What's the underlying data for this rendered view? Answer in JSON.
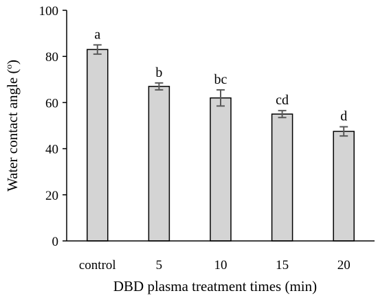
{
  "chart_data": {
    "type": "bar",
    "xlabel": "DBD plasma treatment times (min)",
    "ylabel": "Water contact angle (o)",
    "ylabel_main": "Water contact angle (",
    "ylabel_unit": "o",
    "ylabel_close": ")",
    "categories": [
      "control",
      "5",
      "10",
      "15",
      "20"
    ],
    "values": [
      83,
      67,
      62,
      55,
      47.5
    ],
    "errors": [
      2,
      1.5,
      3.5,
      1.5,
      2
    ],
    "significance": [
      "a",
      "b",
      "bc",
      "cd",
      "d"
    ],
    "ylim": [
      0,
      100
    ],
    "yticks": [
      0,
      20,
      40,
      60,
      80,
      100
    ],
    "grid": false,
    "bar_fill": "#d4d4d4",
    "bar_stroke": "#000000",
    "error_color": "#595959"
  }
}
